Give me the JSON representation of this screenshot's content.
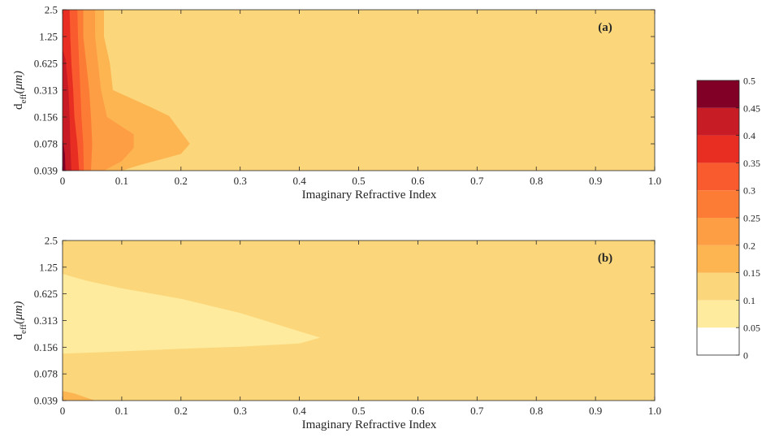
{
  "chart_data": [
    {
      "type": "heatmap",
      "panel_label": "(a)",
      "xlabel": "Imaginary Refractive Index",
      "ylabel_main": "d",
      "ylabel_sub": "eff",
      "ylabel_unit": "(μm)",
      "x_ticks": [
        "0",
        "0.1",
        "0.2",
        "0.3",
        "0.4",
        "0.5",
        "0.6",
        "0.7",
        "0.8",
        "0.9",
        "1.0"
      ],
      "x_tick_values": [
        0,
        0.1,
        0.2,
        0.3,
        0.4,
        0.5,
        0.6,
        0.7,
        0.8,
        0.9,
        1.0
      ],
      "y_ticks": [
        "2.5",
        "1.25",
        "0.625",
        "0.313",
        "0.156",
        "0.078",
        "0.039"
      ],
      "y_tick_values": [
        2.5,
        1.25,
        0.625,
        0.313,
        0.156,
        0.078,
        0.039
      ],
      "xlim": [
        0,
        1.0
      ],
      "ylim": [
        0.039,
        2.5
      ],
      "y_scale": "log",
      "background_level": [
        0.1,
        0.15
      ],
      "contour_regions": [
        {
          "range": [
            0.15,
            0.2
          ],
          "boundary": [
            [
              0.0,
              2.5
            ],
            [
              0.07,
              2.5
            ],
            [
              0.07,
              1.25
            ],
            [
              0.08,
              0.625
            ],
            [
              0.085,
              0.313
            ],
            [
              0.15,
              0.2
            ],
            [
              0.18,
              0.16
            ],
            [
              0.215,
              0.078
            ],
            [
              0.2,
              0.06
            ],
            [
              0.13,
              0.045
            ],
            [
              0.1,
              0.039
            ],
            [
              0.0,
              0.039
            ]
          ]
        },
        {
          "range": [
            0.2,
            0.25
          ],
          "boundary": [
            [
              0.0,
              2.5
            ],
            [
              0.055,
              2.5
            ],
            [
              0.055,
              1.25
            ],
            [
              0.06,
              0.625
            ],
            [
              0.065,
              0.313
            ],
            [
              0.075,
              0.156
            ],
            [
              0.12,
              0.1
            ],
            [
              0.12,
              0.07
            ],
            [
              0.1,
              0.05
            ],
            [
              0.07,
              0.039
            ],
            [
              0.0,
              0.039
            ]
          ]
        },
        {
          "range": [
            0.25,
            0.3
          ],
          "boundary": [
            [
              0.0,
              2.5
            ],
            [
              0.035,
              2.5
            ],
            [
              0.035,
              1.25
            ],
            [
              0.04,
              0.625
            ],
            [
              0.045,
              0.313
            ],
            [
              0.048,
              0.156
            ],
            [
              0.05,
              0.078
            ],
            [
              0.048,
              0.039
            ],
            [
              0.0,
              0.039
            ]
          ]
        },
        {
          "range": [
            0.3,
            0.35
          ],
          "boundary": [
            [
              0.0,
              2.5
            ],
            [
              0.025,
              2.5
            ],
            [
              0.026,
              1.25
            ],
            [
              0.028,
              0.625
            ],
            [
              0.03,
              0.313
            ],
            [
              0.032,
              0.156
            ],
            [
              0.035,
              0.078
            ],
            [
              0.036,
              0.039
            ],
            [
              0.0,
              0.039
            ]
          ]
        },
        {
          "range": [
            0.35,
            0.4
          ],
          "boundary": [
            [
              0.0,
              2.5
            ],
            [
              0.012,
              2.5
            ],
            [
              0.013,
              1.25
            ],
            [
              0.015,
              0.625
            ],
            [
              0.018,
              0.313
            ],
            [
              0.02,
              0.156
            ],
            [
              0.025,
              0.078
            ],
            [
              0.028,
              0.039
            ],
            [
              0.0,
              0.039
            ]
          ]
        },
        {
          "range": [
            0.4,
            0.45
          ],
          "boundary": [
            [
              0.0,
              0.9
            ],
            [
              0.005,
              0.7
            ],
            [
              0.01,
              0.313
            ],
            [
              0.012,
              0.156
            ],
            [
              0.013,
              0.078
            ],
            [
              0.015,
              0.039
            ],
            [
              0.0,
              0.039
            ]
          ]
        },
        {
          "range": [
            0.45,
            0.5
          ],
          "boundary": [
            [
              0.0,
              0.09
            ],
            [
              0.004,
              0.06
            ],
            [
              0.005,
              0.039
            ],
            [
              0.0,
              0.039
            ]
          ]
        }
      ]
    },
    {
      "type": "heatmap",
      "panel_label": "(b)",
      "xlabel": "Imaginary Refractive Index",
      "ylabel_main": "d",
      "ylabel_sub": "eff",
      "ylabel_unit": "(μm)",
      "x_ticks": [
        "0",
        "0.1",
        "0.2",
        "0.3",
        "0.4",
        "0.5",
        "0.6",
        "0.7",
        "0.8",
        "0.9",
        "1.0"
      ],
      "x_tick_values": [
        0,
        0.1,
        0.2,
        0.3,
        0.4,
        0.5,
        0.6,
        0.7,
        0.8,
        0.9,
        1.0
      ],
      "y_ticks": [
        "2.5",
        "1.25",
        "0.625",
        "0.313",
        "0.156",
        "0.078",
        "0.039"
      ],
      "y_tick_values": [
        2.5,
        1.25,
        0.625,
        0.313,
        0.156,
        0.078,
        0.039
      ],
      "xlim": [
        0,
        1.0
      ],
      "ylim": [
        0.039,
        2.5
      ],
      "y_scale": "log",
      "background_level": [
        0.1,
        0.15
      ],
      "contour_regions": [
        {
          "range": [
            0.05,
            0.1
          ],
          "boundary": [
            [
              0.0,
              1.05
            ],
            [
              0.04,
              0.88
            ],
            [
              0.1,
              0.72
            ],
            [
              0.2,
              0.55
            ],
            [
              0.3,
              0.38
            ],
            [
              0.38,
              0.26
            ],
            [
              0.435,
              0.2
            ],
            [
              0.4,
              0.172
            ],
            [
              0.3,
              0.158
            ],
            [
              0.2,
              0.15
            ],
            [
              0.1,
              0.14
            ],
            [
              0.0,
              0.132
            ]
          ]
        },
        {
          "range": [
            0.15,
            0.2
          ],
          "boundary": [
            [
              0.0,
              0.05
            ],
            [
              0.02,
              0.047
            ],
            [
              0.045,
              0.041
            ],
            [
              0.055,
              0.039
            ],
            [
              0.0,
              0.039
            ]
          ]
        }
      ]
    }
  ],
  "colorbar": {
    "levels": [
      0,
      0.05,
      0.1,
      0.15,
      0.2,
      0.25,
      0.3,
      0.35,
      0.4,
      0.45,
      0.5
    ],
    "labels": [
      "0",
      "0.05",
      "0.1",
      "0.15",
      "0.2",
      "0.25",
      "0.3",
      "0.35",
      "0.4",
      "0.45",
      "0.5"
    ],
    "colors": [
      "#ffffff",
      "#feeb9e",
      "#fcd67a",
      "#fdb552",
      "#fd9d44",
      "#fc7c36",
      "#f95a2e",
      "#e82e23",
      "#c71b26",
      "#810026"
    ]
  }
}
